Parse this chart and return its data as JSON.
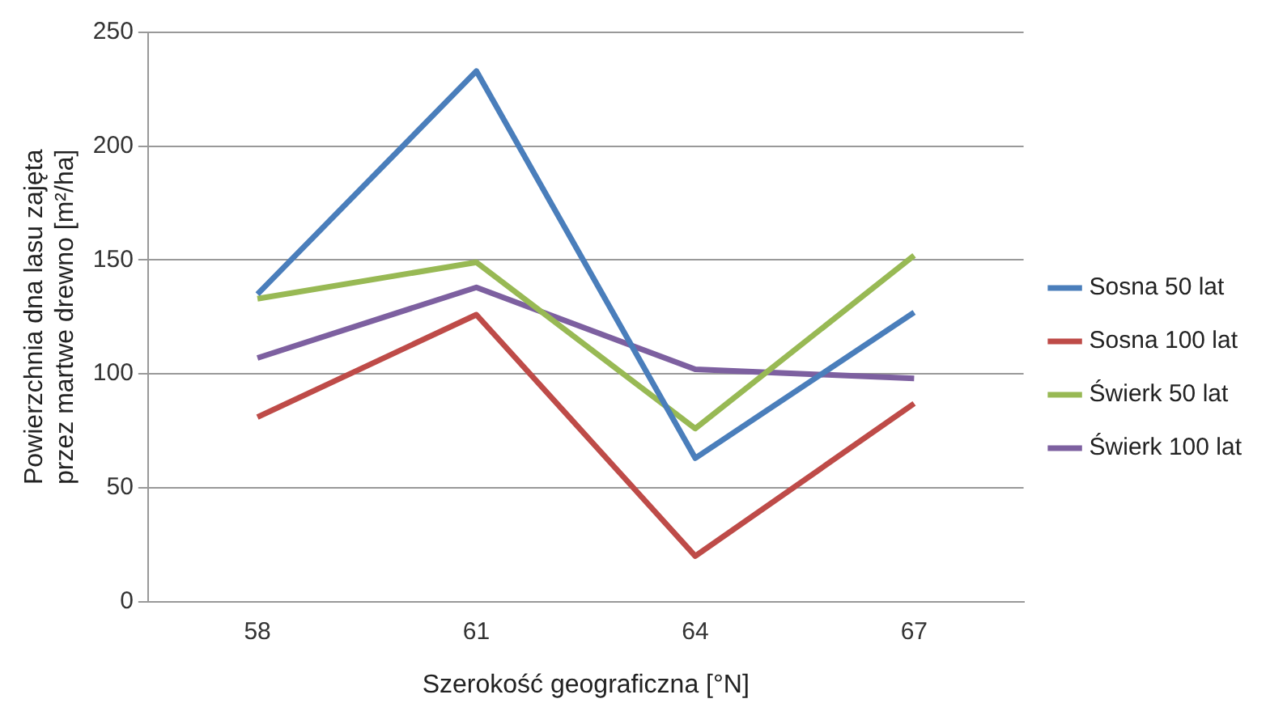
{
  "chart_data": {
    "type": "line",
    "xlabel": "Szerokość geograficzna [°N]",
    "ylabel": "Powierzchnia dna lasu zajęta przez martwe drewno [m²/ha]",
    "categories": [
      "58",
      "61",
      "64",
      "67"
    ],
    "series": [
      {
        "name": "Sosna 50 lat",
        "color": "#4a7ebb",
        "values": [
          135,
          233,
          63,
          127
        ]
      },
      {
        "name": "Sosna 100 lat",
        "color": "#be4b48",
        "values": [
          81,
          126,
          20,
          87
        ]
      },
      {
        "name": "Świerk 50 lat",
        "color": "#98b954",
        "values": [
          133,
          149,
          76,
          152
        ]
      },
      {
        "name": "Świerk 100 lat",
        "color": "#7d60a0",
        "values": [
          107,
          138,
          102,
          98
        ]
      }
    ],
    "ylim": [
      0,
      250
    ],
    "yticks": [
      0,
      50,
      100,
      150,
      200,
      250
    ],
    "grid": "y",
    "legend": "right",
    "marker": "none",
    "line_style": "solid"
  }
}
